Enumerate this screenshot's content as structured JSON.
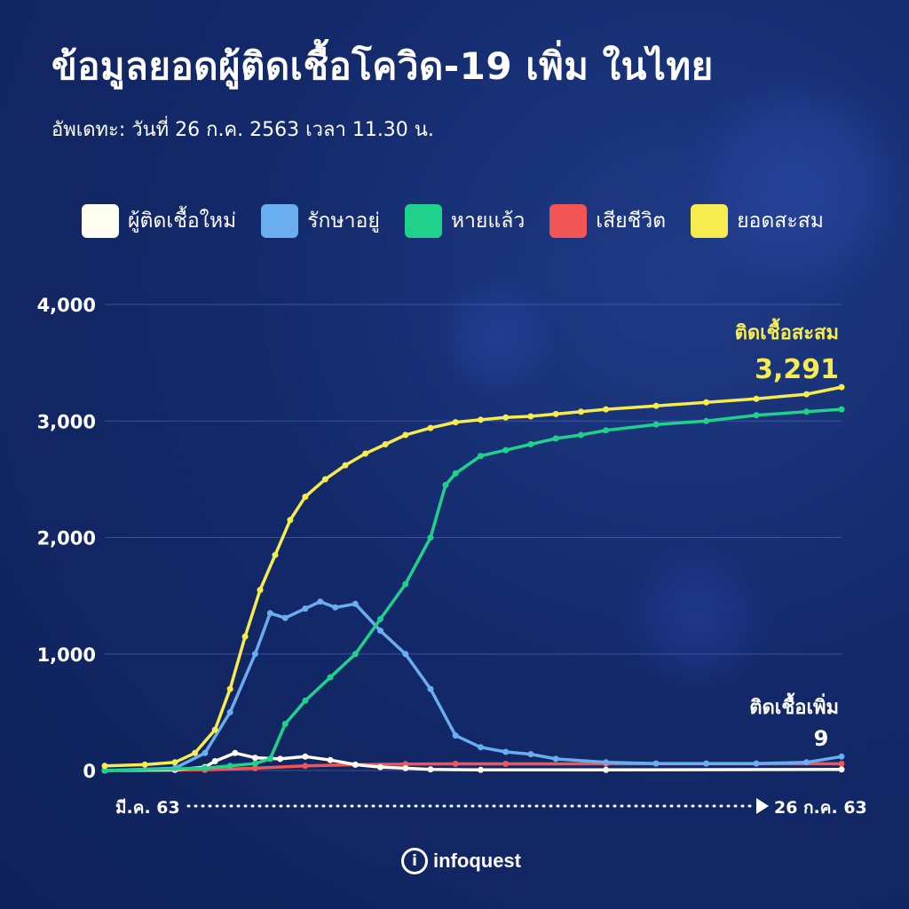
{
  "header": {
    "title": "ข้อมูลยอดผู้ติดเชื้อโควิด-19 เพิ่ม ในไทย",
    "subtitle": "อัพเดทะ: วันที่ 26 ก.ค. 2563 เวลา 11.30 น."
  },
  "legend": [
    {
      "label": "ผู้ติดเชื้อใหม่",
      "color": "#fffef0"
    },
    {
      "label": "รักษาอยู่",
      "color": "#6aaef0"
    },
    {
      "label": "หายแล้ว",
      "color": "#1fd18a"
    },
    {
      "label": "เสียชีวิต",
      "color": "#f25555"
    },
    {
      "label": "ยอดสะสม",
      "color": "#f7ec4f"
    }
  ],
  "annotations": {
    "total_label": "ติดเชื้อสะสม",
    "total_value": "3,291",
    "new_label": "ติดเชื้อเพิ่ม",
    "new_value": "9"
  },
  "axis": {
    "x_start": "มี.ค. 63",
    "x_end": "26 ก.ค. 63"
  },
  "brand": {
    "icon_glyph": "i",
    "name": "infoquest"
  },
  "chart_data": {
    "type": "line",
    "title": "ข้อมูลยอดผู้ติดเชื้อโควิด-19 เพิ่ม ในไทย",
    "xlabel": "",
    "ylabel": "",
    "x_range": [
      "มี.ค. 63",
      "26 ก.ค. 63"
    ],
    "x_day_count": 148,
    "ylim": [
      0,
      4000
    ],
    "yticks": [
      0,
      1000,
      2000,
      3000,
      4000
    ],
    "ytick_labels": [
      "0",
      "1,000",
      "2,000",
      "3,000",
      "4,000"
    ],
    "grid": true,
    "legend_position": "top",
    "series": [
      {
        "name": "ผู้ติดเชื้อใหม่",
        "color": "#fffef0",
        "points": [
          [
            0,
            0
          ],
          [
            14,
            5
          ],
          [
            20,
            30
          ],
          [
            22,
            80
          ],
          [
            26,
            150
          ],
          [
            30,
            110
          ],
          [
            35,
            100
          ],
          [
            40,
            120
          ],
          [
            45,
            90
          ],
          [
            50,
            50
          ],
          [
            55,
            30
          ],
          [
            60,
            20
          ],
          [
            65,
            10
          ],
          [
            75,
            5
          ],
          [
            100,
            5
          ],
          [
            147,
            9
          ]
        ]
      },
      {
        "name": "รักษาอยู่",
        "color": "#6aaef0",
        "points": [
          [
            0,
            0
          ],
          [
            14,
            20
          ],
          [
            20,
            150
          ],
          [
            25,
            500
          ],
          [
            30,
            1000
          ],
          [
            33,
            1350
          ],
          [
            36,
            1310
          ],
          [
            40,
            1390
          ],
          [
            43,
            1450
          ],
          [
            46,
            1400
          ],
          [
            50,
            1430
          ],
          [
            55,
            1200
          ],
          [
            60,
            1000
          ],
          [
            65,
            700
          ],
          [
            70,
            300
          ],
          [
            75,
            200
          ],
          [
            80,
            160
          ],
          [
            85,
            140
          ],
          [
            90,
            100
          ],
          [
            100,
            70
          ],
          [
            110,
            60
          ],
          [
            120,
            60
          ],
          [
            130,
            60
          ],
          [
            140,
            70
          ],
          [
            147,
            120
          ]
        ]
      },
      {
        "name": "หายแล้ว",
        "color": "#1fd18a",
        "points": [
          [
            0,
            0
          ],
          [
            20,
            20
          ],
          [
            25,
            40
          ],
          [
            30,
            60
          ],
          [
            33,
            100
          ],
          [
            36,
            400
          ],
          [
            40,
            600
          ],
          [
            45,
            800
          ],
          [
            50,
            1000
          ],
          [
            55,
            1300
          ],
          [
            60,
            1600
          ],
          [
            65,
            2000
          ],
          [
            68,
            2450
          ],
          [
            70,
            2550
          ],
          [
            75,
            2700
          ],
          [
            80,
            2750
          ],
          [
            85,
            2800
          ],
          [
            90,
            2850
          ],
          [
            95,
            2880
          ],
          [
            100,
            2920
          ],
          [
            110,
            2970
          ],
          [
            120,
            3000
          ],
          [
            130,
            3050
          ],
          [
            140,
            3080
          ],
          [
            147,
            3100
          ]
        ]
      },
      {
        "name": "เสียชีวิต",
        "color": "#f25555",
        "points": [
          [
            0,
            0
          ],
          [
            20,
            5
          ],
          [
            30,
            20
          ],
          [
            40,
            40
          ],
          [
            50,
            50
          ],
          [
            60,
            55
          ],
          [
            70,
            57
          ],
          [
            80,
            57
          ],
          [
            100,
            58
          ],
          [
            147,
            58
          ]
        ]
      },
      {
        "name": "ยอดสะสม",
        "color": "#f7ec4f",
        "points": [
          [
            0,
            40
          ],
          [
            8,
            50
          ],
          [
            14,
            70
          ],
          [
            18,
            150
          ],
          [
            22,
            350
          ],
          [
            25,
            700
          ],
          [
            28,
            1150
          ],
          [
            31,
            1550
          ],
          [
            34,
            1850
          ],
          [
            37,
            2150
          ],
          [
            40,
            2350
          ],
          [
            44,
            2500
          ],
          [
            48,
            2620
          ],
          [
            52,
            2720
          ],
          [
            56,
            2800
          ],
          [
            60,
            2880
          ],
          [
            65,
            2940
          ],
          [
            70,
            2990
          ],
          [
            75,
            3010
          ],
          [
            80,
            3030
          ],
          [
            85,
            3040
          ],
          [
            90,
            3060
          ],
          [
            95,
            3080
          ],
          [
            100,
            3100
          ],
          [
            110,
            3130
          ],
          [
            120,
            3160
          ],
          [
            130,
            3190
          ],
          [
            140,
            3230
          ],
          [
            147,
            3291
          ]
        ]
      }
    ]
  }
}
